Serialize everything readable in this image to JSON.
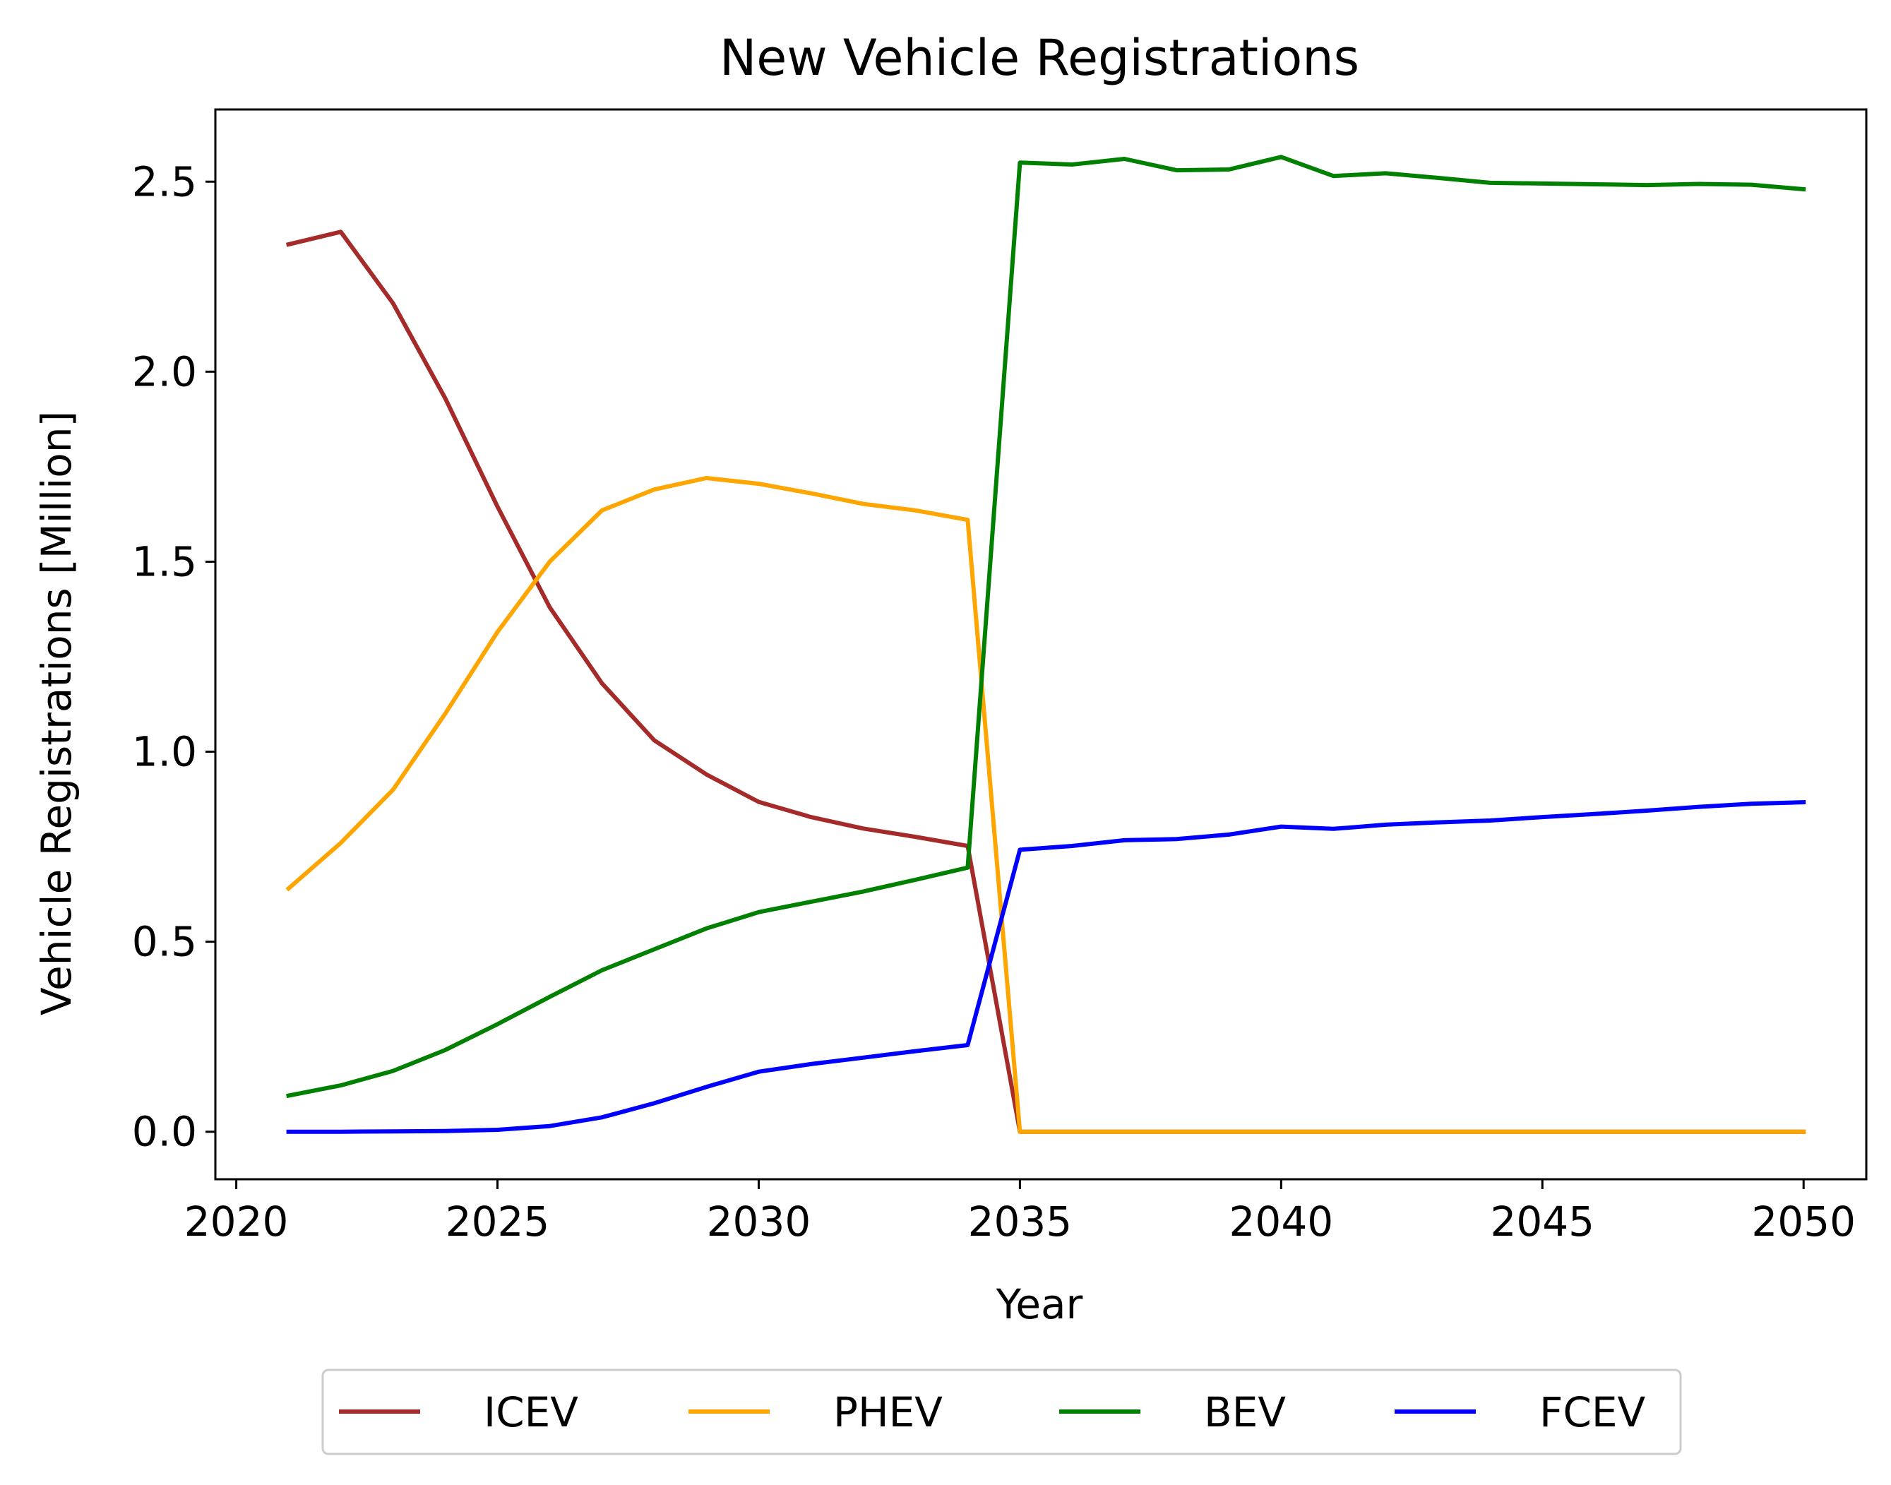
{
  "chart_data": {
    "type": "line",
    "title": "New Vehicle Registrations",
    "xlabel": "Year",
    "ylabel": "Vehicle Registrations [Million]",
    "xlim": [
      2019.6,
      2051.2
    ],
    "ylim": [
      -0.125,
      2.69
    ],
    "xticks": [
      2020,
      2025,
      2030,
      2035,
      2040,
      2045,
      2050
    ],
    "yticks": [
      0.0,
      0.5,
      1.0,
      1.5,
      2.0,
      2.5
    ],
    "xtick_labels": [
      "2020",
      "2025",
      "2030",
      "2035",
      "2040",
      "2045",
      "2050"
    ],
    "ytick_labels": [
      "0.0",
      "0.5",
      "1.0",
      "1.5",
      "2.0",
      "2.5"
    ],
    "grid": false,
    "legend_position": "bottom-center-outside",
    "x": [
      2021,
      2022,
      2023,
      2024,
      2025,
      2026,
      2027,
      2028,
      2029,
      2030,
      2031,
      2032,
      2033,
      2034,
      2035,
      2036,
      2037,
      2038,
      2039,
      2040,
      2041,
      2042,
      2043,
      2044,
      2045,
      2046,
      2047,
      2048,
      2049,
      2050
    ],
    "series": [
      {
        "name": "ICEV",
        "color": "#a52a2a",
        "values": [
          2.335,
          2.368,
          2.18,
          1.93,
          1.645,
          1.38,
          1.18,
          1.03,
          0.94,
          0.868,
          0.828,
          0.798,
          0.776,
          0.752,
          0.0,
          0.0,
          0.0,
          0.0,
          0.0,
          0.0,
          0.0,
          0.0,
          0.0,
          0.0,
          0.0,
          0.0,
          0.0,
          0.0,
          0.0,
          0.0
        ]
      },
      {
        "name": "PHEV",
        "color": "#ffa500",
        "values": [
          0.64,
          0.76,
          0.9,
          1.1,
          1.315,
          1.5,
          1.635,
          1.69,
          1.72,
          1.705,
          1.68,
          1.652,
          1.635,
          1.61,
          0.0,
          0.0,
          0.0,
          0.0,
          0.0,
          0.0,
          0.0,
          0.0,
          0.0,
          0.0,
          0.0,
          0.0,
          0.0,
          0.0,
          0.0,
          0.0
        ]
      },
      {
        "name": "BEV",
        "color": "#008000",
        "values": [
          0.095,
          0.122,
          0.16,
          0.215,
          0.283,
          0.355,
          0.425,
          0.48,
          0.535,
          0.578,
          0.605,
          0.632,
          0.663,
          0.695,
          2.55,
          2.545,
          2.56,
          2.53,
          2.532,
          2.565,
          2.515,
          2.522,
          2.51,
          2.497,
          2.495,
          2.493,
          2.491,
          2.494,
          2.492,
          2.48
        ]
      },
      {
        "name": "FCEV",
        "color": "#0000ff",
        "values": [
          0.0,
          0.0,
          0.001,
          0.002,
          0.005,
          0.015,
          0.038,
          0.075,
          0.118,
          0.158,
          0.178,
          0.195,
          0.212,
          0.228,
          0.742,
          0.752,
          0.767,
          0.77,
          0.782,
          0.803,
          0.797,
          0.808,
          0.814,
          0.819,
          0.828,
          0.836,
          0.845,
          0.855,
          0.863,
          0.867
        ]
      }
    ]
  }
}
